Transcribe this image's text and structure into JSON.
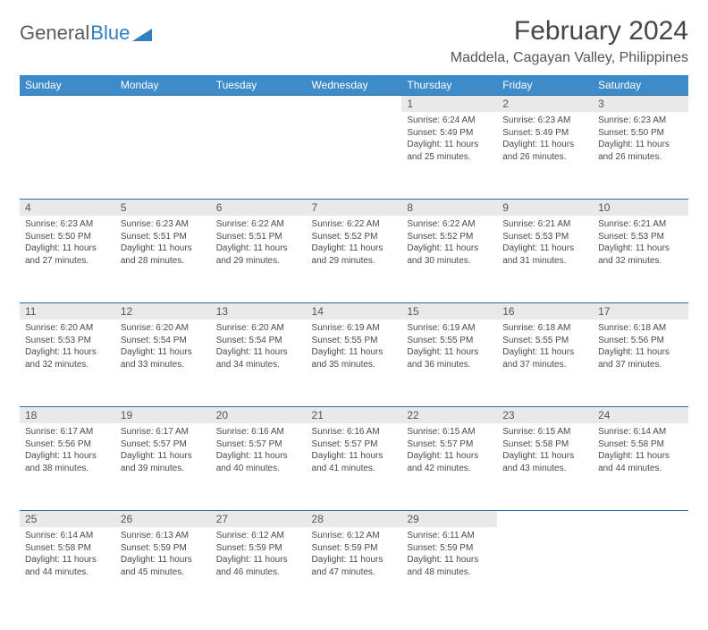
{
  "brand": {
    "part1": "General",
    "part2": "Blue"
  },
  "title": "February 2024",
  "location": "Maddela, Cagayan Valley, Philippines",
  "colors": {
    "header_bg": "#3d8bc8",
    "header_text": "#ffffff",
    "daynum_bg": "#e9e9e9",
    "border": "#2f6aa0",
    "text": "#4a4a4a",
    "brand_gray": "#5b5b5b",
    "brand_blue": "#2f7fc2"
  },
  "weekdays": [
    "Sunday",
    "Monday",
    "Tuesday",
    "Wednesday",
    "Thursday",
    "Friday",
    "Saturday"
  ],
  "weeks": [
    {
      "nums": [
        "",
        "",
        "",
        "",
        "1",
        "2",
        "3"
      ],
      "cells": [
        null,
        null,
        null,
        null,
        {
          "sunrise": "Sunrise: 6:24 AM",
          "sunset": "Sunset: 5:49 PM",
          "d1": "Daylight: 11 hours",
          "d2": "and 25 minutes."
        },
        {
          "sunrise": "Sunrise: 6:23 AM",
          "sunset": "Sunset: 5:49 PM",
          "d1": "Daylight: 11 hours",
          "d2": "and 26 minutes."
        },
        {
          "sunrise": "Sunrise: 6:23 AM",
          "sunset": "Sunset: 5:50 PM",
          "d1": "Daylight: 11 hours",
          "d2": "and 26 minutes."
        }
      ]
    },
    {
      "nums": [
        "4",
        "5",
        "6",
        "7",
        "8",
        "9",
        "10"
      ],
      "cells": [
        {
          "sunrise": "Sunrise: 6:23 AM",
          "sunset": "Sunset: 5:50 PM",
          "d1": "Daylight: 11 hours",
          "d2": "and 27 minutes."
        },
        {
          "sunrise": "Sunrise: 6:23 AM",
          "sunset": "Sunset: 5:51 PM",
          "d1": "Daylight: 11 hours",
          "d2": "and 28 minutes."
        },
        {
          "sunrise": "Sunrise: 6:22 AM",
          "sunset": "Sunset: 5:51 PM",
          "d1": "Daylight: 11 hours",
          "d2": "and 29 minutes."
        },
        {
          "sunrise": "Sunrise: 6:22 AM",
          "sunset": "Sunset: 5:52 PM",
          "d1": "Daylight: 11 hours",
          "d2": "and 29 minutes."
        },
        {
          "sunrise": "Sunrise: 6:22 AM",
          "sunset": "Sunset: 5:52 PM",
          "d1": "Daylight: 11 hours",
          "d2": "and 30 minutes."
        },
        {
          "sunrise": "Sunrise: 6:21 AM",
          "sunset": "Sunset: 5:53 PM",
          "d1": "Daylight: 11 hours",
          "d2": "and 31 minutes."
        },
        {
          "sunrise": "Sunrise: 6:21 AM",
          "sunset": "Sunset: 5:53 PM",
          "d1": "Daylight: 11 hours",
          "d2": "and 32 minutes."
        }
      ]
    },
    {
      "nums": [
        "11",
        "12",
        "13",
        "14",
        "15",
        "16",
        "17"
      ],
      "cells": [
        {
          "sunrise": "Sunrise: 6:20 AM",
          "sunset": "Sunset: 5:53 PM",
          "d1": "Daylight: 11 hours",
          "d2": "and 32 minutes."
        },
        {
          "sunrise": "Sunrise: 6:20 AM",
          "sunset": "Sunset: 5:54 PM",
          "d1": "Daylight: 11 hours",
          "d2": "and 33 minutes."
        },
        {
          "sunrise": "Sunrise: 6:20 AM",
          "sunset": "Sunset: 5:54 PM",
          "d1": "Daylight: 11 hours",
          "d2": "and 34 minutes."
        },
        {
          "sunrise": "Sunrise: 6:19 AM",
          "sunset": "Sunset: 5:55 PM",
          "d1": "Daylight: 11 hours",
          "d2": "and 35 minutes."
        },
        {
          "sunrise": "Sunrise: 6:19 AM",
          "sunset": "Sunset: 5:55 PM",
          "d1": "Daylight: 11 hours",
          "d2": "and 36 minutes."
        },
        {
          "sunrise": "Sunrise: 6:18 AM",
          "sunset": "Sunset: 5:55 PM",
          "d1": "Daylight: 11 hours",
          "d2": "and 37 minutes."
        },
        {
          "sunrise": "Sunrise: 6:18 AM",
          "sunset": "Sunset: 5:56 PM",
          "d1": "Daylight: 11 hours",
          "d2": "and 37 minutes."
        }
      ]
    },
    {
      "nums": [
        "18",
        "19",
        "20",
        "21",
        "22",
        "23",
        "24"
      ],
      "cells": [
        {
          "sunrise": "Sunrise: 6:17 AM",
          "sunset": "Sunset: 5:56 PM",
          "d1": "Daylight: 11 hours",
          "d2": "and 38 minutes."
        },
        {
          "sunrise": "Sunrise: 6:17 AM",
          "sunset": "Sunset: 5:57 PM",
          "d1": "Daylight: 11 hours",
          "d2": "and 39 minutes."
        },
        {
          "sunrise": "Sunrise: 6:16 AM",
          "sunset": "Sunset: 5:57 PM",
          "d1": "Daylight: 11 hours",
          "d2": "and 40 minutes."
        },
        {
          "sunrise": "Sunrise: 6:16 AM",
          "sunset": "Sunset: 5:57 PM",
          "d1": "Daylight: 11 hours",
          "d2": "and 41 minutes."
        },
        {
          "sunrise": "Sunrise: 6:15 AM",
          "sunset": "Sunset: 5:57 PM",
          "d1": "Daylight: 11 hours",
          "d2": "and 42 minutes."
        },
        {
          "sunrise": "Sunrise: 6:15 AM",
          "sunset": "Sunset: 5:58 PM",
          "d1": "Daylight: 11 hours",
          "d2": "and 43 minutes."
        },
        {
          "sunrise": "Sunrise: 6:14 AM",
          "sunset": "Sunset: 5:58 PM",
          "d1": "Daylight: 11 hours",
          "d2": "and 44 minutes."
        }
      ]
    },
    {
      "nums": [
        "25",
        "26",
        "27",
        "28",
        "29",
        "",
        ""
      ],
      "cells": [
        {
          "sunrise": "Sunrise: 6:14 AM",
          "sunset": "Sunset: 5:58 PM",
          "d1": "Daylight: 11 hours",
          "d2": "and 44 minutes."
        },
        {
          "sunrise": "Sunrise: 6:13 AM",
          "sunset": "Sunset: 5:59 PM",
          "d1": "Daylight: 11 hours",
          "d2": "and 45 minutes."
        },
        {
          "sunrise": "Sunrise: 6:12 AM",
          "sunset": "Sunset: 5:59 PM",
          "d1": "Daylight: 11 hours",
          "d2": "and 46 minutes."
        },
        {
          "sunrise": "Sunrise: 6:12 AM",
          "sunset": "Sunset: 5:59 PM",
          "d1": "Daylight: 11 hours",
          "d2": "and 47 minutes."
        },
        {
          "sunrise": "Sunrise: 6:11 AM",
          "sunset": "Sunset: 5:59 PM",
          "d1": "Daylight: 11 hours",
          "d2": "and 48 minutes."
        },
        null,
        null
      ]
    }
  ]
}
